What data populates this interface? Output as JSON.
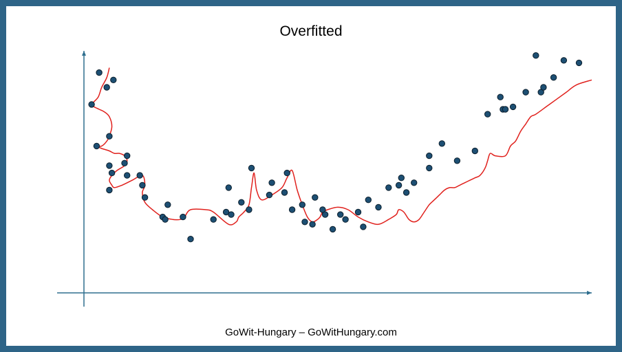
{
  "colors": {
    "frame": "#2e6487",
    "axis": "#2e6e8e",
    "curve": "#e0201c",
    "point_fill": "#1d4f73",
    "point_stroke": "#0b1e2c"
  },
  "footer": {
    "text": "GoWit-Hungary – GoWitHungary.com"
  },
  "chart_data": {
    "type": "scatter",
    "title": "Overfitted",
    "xlabel": "",
    "ylabel": "",
    "xlim": [
      0,
      100
    ],
    "ylim": [
      0,
      100
    ],
    "grid": false,
    "series": [
      {
        "name": "points",
        "x": [
          1.5,
          4.5,
          3.0,
          5.0,
          2.5,
          5.8,
          5.0,
          8.0,
          8.5,
          5.5,
          5.0,
          8.5,
          11.5,
          11.0,
          12.0,
          15.5,
          16.5,
          16.0,
          19.5,
          21.0,
          25.5,
          28.0,
          28.5,
          31.0,
          29.0,
          32.5,
          33.0,
          36.5,
          37.0,
          39.5,
          40.0,
          41.0,
          43.0,
          43.5,
          45.0,
          45.5,
          47.0,
          47.5,
          49.0,
          50.5,
          51.5,
          54.0,
          55.0,
          56.0,
          58.0,
          60.0,
          62.0,
          62.5,
          63.5,
          65.0,
          68.0,
          68.0,
          70.5,
          73.5,
          77.0,
          79.5,
          82.5,
          82.0,
          83.0,
          84.5,
          87.0,
          90.0,
          90.5,
          92.5,
          94.5,
          97.5,
          89.0
        ],
        "y": [
          77,
          84,
          90,
          64,
          60,
          87,
          52,
          53,
          56,
          49,
          42,
          48,
          44,
          48,
          39,
          31,
          36,
          30,
          31,
          22,
          30,
          33,
          43,
          37,
          32,
          34,
          51,
          40,
          45,
          41,
          49,
          34,
          36,
          29,
          28,
          39,
          34,
          32,
          26,
          32,
          30,
          33,
          27,
          38,
          35,
          43,
          44,
          47,
          41,
          45,
          56,
          51,
          61,
          54,
          58,
          73,
          75,
          80,
          75,
          76,
          82,
          82,
          84,
          88,
          95,
          94,
          97
        ]
      },
      {
        "name": "overfitted curve",
        "x": [
          5.0,
          4.5,
          3.5,
          2.8,
          1.5,
          2.0,
          3.0,
          4.0,
          5.0,
          5.5,
          5.0,
          4.5,
          3.5,
          2.5,
          3.5,
          5.0,
          6.0,
          7.0,
          8.0,
          8.5,
          8.0,
          6.5,
          5.5,
          5.0,
          5.5,
          6.0,
          7.5,
          9.5,
          11.5,
          12.0,
          11.5,
          12.0,
          13.5,
          15.5,
          17.5,
          19.0,
          19.8,
          21.0,
          24.0,
          25.5,
          28.5,
          30.0,
          30.5,
          31.5,
          32.5,
          33.0,
          33.5,
          34.0,
          35.0,
          37.0,
          39.0,
          40.0,
          41.0,
          42.0,
          43.0,
          44.0,
          45.0,
          46.0,
          46.5,
          47.0,
          48.0,
          50.0,
          52.0,
          54.0,
          56.0,
          58.0,
          60.0,
          61.5,
          62.0,
          63.0,
          64.0,
          65.0,
          66.0,
          67.0,
          68.0,
          69.0,
          70.0,
          71.0,
          72.0,
          73.0,
          74.0,
          75.0,
          76.0,
          77.0,
          78.0,
          79.0,
          79.5,
          80.0,
          81.0,
          83.0,
          84.0,
          85.0,
          86.0,
          87.0,
          88.0,
          89.0,
          91.0,
          93.0,
          95.0,
          97.0,
          100.0
        ],
        "y": [
          92,
          88,
          84,
          80,
          77,
          76,
          75,
          74,
          72,
          68,
          64,
          62,
          60,
          60,
          59,
          58,
          57,
          57,
          56,
          54,
          52,
          50,
          48,
          46,
          44,
          43,
          44,
          46,
          48,
          44,
          41,
          37,
          34,
          31,
          30,
          30,
          31,
          34,
          34,
          33,
          28,
          29,
          31,
          33,
          36,
          43,
          49,
          42,
          38,
          40,
          43,
          47,
          50,
          42,
          36,
          31,
          29,
          30,
          31,
          33,
          34,
          35,
          34,
          31,
          29,
          28,
          30,
          32,
          34,
          33,
          30,
          29,
          30,
          33,
          36,
          38,
          40,
          42,
          43,
          43,
          44,
          45,
          46,
          47,
          48,
          51,
          54,
          57,
          56,
          56,
          60,
          62,
          66,
          69,
          72,
          73,
          76,
          79,
          82,
          85,
          87
        ]
      }
    ]
  }
}
